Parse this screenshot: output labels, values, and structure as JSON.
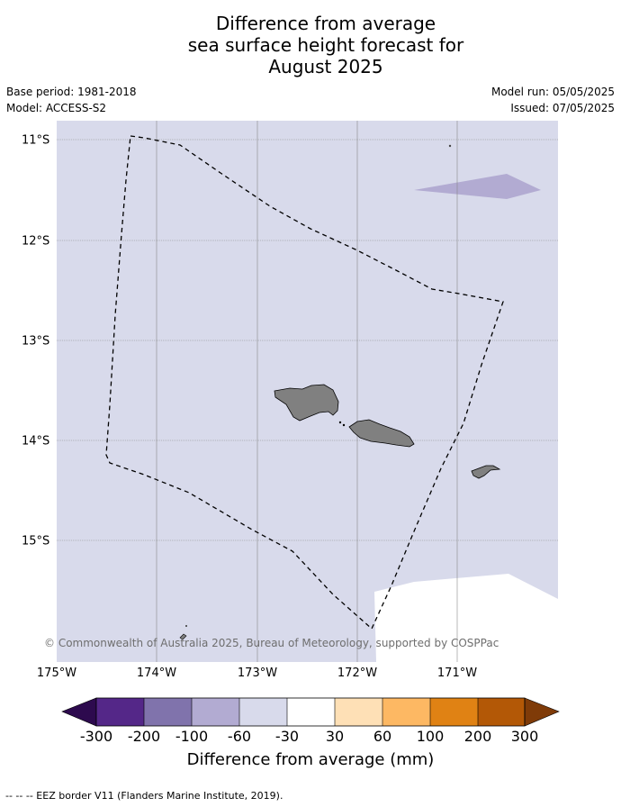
{
  "title": {
    "line1": "Difference from average",
    "line2": "sea surface height forecast for",
    "line3": "August 2025"
  },
  "meta": {
    "base_period": "Base period: 1981-2018",
    "model": "Model: ACCESS-S2",
    "model_run": "Model run: 05/05/2025",
    "issued": "Issued: 07/05/2025"
  },
  "map": {
    "x_ticks": [
      "175°W",
      "174°W",
      "173°W",
      "172°W",
      "171°W"
    ],
    "y_ticks": [
      "11°S",
      "12°S",
      "13°S",
      "14°S",
      "15°S"
    ],
    "copyright": "© Commonwealth of Australia 2025, Bureau of Meteorology, supported by COSPPac",
    "background_category": "-60 to -30",
    "patch_category": "-100 to -60",
    "no_data_region": "white"
  },
  "colorbar": {
    "label": "Difference from average (mm)",
    "ticks": [
      "-300",
      "-200",
      "-100",
      "-60",
      "-30",
      "30",
      "60",
      "100",
      "200",
      "300"
    ],
    "colors": [
      "#2d0a4e",
      "#542788",
      "#8073ac",
      "#b2abd2",
      "#d8daeb",
      "#ffffff",
      "#fee0b6",
      "#fdb863",
      "#e08214",
      "#b35806",
      "#7f3b08"
    ]
  },
  "legend_footer": "--  --  -- EEZ border V11 (Flanders Marine Institute, 2019)."
}
